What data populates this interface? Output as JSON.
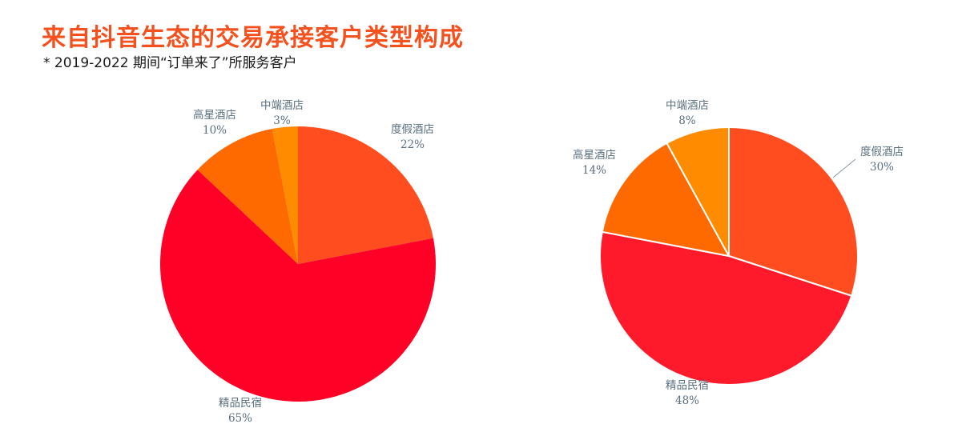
{
  "header": {
    "title": "来自抖音生态的交易承接客户类型构成",
    "subtitle": "* 2019-2022 期间“订单来了”所服务客户"
  },
  "chart_data": [
    {
      "type": "pie",
      "title": "",
      "slices": [
        {
          "label": "度假酒店",
          "value": 22,
          "value_label": "22%",
          "color": "#ff4d1f"
        },
        {
          "label": "精品民宿",
          "value": 65,
          "value_label": "65%",
          "color": "#ff0026"
        },
        {
          "label": "高星酒店",
          "value": 10,
          "value_label": "10%",
          "color": "#ff6a00"
        },
        {
          "label": "中端酒店",
          "value": 3,
          "value_label": "3%",
          "color": "#ff8c00"
        }
      ]
    },
    {
      "type": "pie",
      "title": "",
      "slices": [
        {
          "label": "度假酒店",
          "value": 30,
          "value_label": "30%",
          "color": "#ff4d1f"
        },
        {
          "label": "精品民宿",
          "value": 48,
          "value_label": "48%",
          "color": "#ff1a2b"
        },
        {
          "label": "高星酒店",
          "value": 14,
          "value_label": "14%",
          "color": "#ff6a00"
        },
        {
          "label": "中端酒店",
          "value": 8,
          "value_label": "8%",
          "color": "#ff8c00"
        }
      ]
    }
  ]
}
